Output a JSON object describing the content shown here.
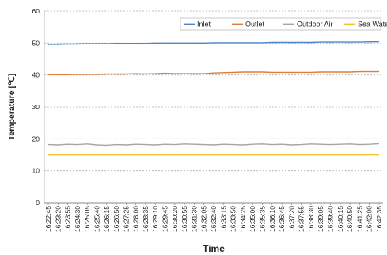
{
  "chart_data": {
    "type": "line",
    "xlabel": "Time",
    "ylabel": "Temperature [℃]",
    "ylim": [
      0,
      60
    ],
    "yticks": [
      0,
      10,
      20,
      30,
      40,
      50,
      60
    ],
    "grid": "horizontal dashed",
    "legend_position": "top-right",
    "categories": [
      "16:22:45",
      "16:23:20",
      "16:23:55",
      "16:24:30",
      "16:25:05",
      "16:25:40",
      "16:26:15",
      "16:26:50",
      "16:27:25",
      "16:28:00",
      "16:28:35",
      "16:29:10",
      "16:29:45",
      "16:30:20",
      "16:30:55",
      "16:31:30",
      "16:32:05",
      "16:32:40",
      "16:33:15",
      "16:33:50",
      "16:34:25",
      "16:35:00",
      "16:35:35",
      "16:36:10",
      "16:36:45",
      "16:37:20",
      "16:37:55",
      "16:38:30",
      "16:39:05",
      "16:39:40",
      "16:40:15",
      "16:40:50",
      "16:41:25",
      "16:42:00",
      "16:42:35"
    ],
    "series": [
      {
        "name": "Inlet",
        "color": "#4a86c8",
        "values": [
          49.6,
          49.6,
          49.7,
          49.7,
          49.8,
          49.8,
          49.8,
          49.9,
          49.9,
          49.9,
          49.9,
          50.0,
          50.0,
          50.0,
          50.0,
          50.0,
          50.0,
          50.1,
          50.1,
          50.1,
          50.1,
          50.1,
          50.1,
          50.2,
          50.2,
          50.2,
          50.2,
          50.2,
          50.3,
          50.3,
          50.3,
          50.3,
          50.3,
          50.4,
          50.4
        ]
      },
      {
        "name": "Outlet",
        "color": "#e07b39",
        "values": [
          40.1,
          40.1,
          40.1,
          40.2,
          40.2,
          40.2,
          40.3,
          40.3,
          40.3,
          40.4,
          40.3,
          40.4,
          40.5,
          40.4,
          40.4,
          40.4,
          40.4,
          40.6,
          40.7,
          40.8,
          40.9,
          40.9,
          40.9,
          40.8,
          40.8,
          40.8,
          40.8,
          40.8,
          40.9,
          40.9,
          40.9,
          40.9,
          41.0,
          41.0,
          41.0
        ]
      },
      {
        "name": "Outdoor Air",
        "color": "#a5a5a5",
        "values": [
          18.2,
          18.1,
          18.3,
          18.2,
          18.4,
          18.1,
          18.0,
          18.2,
          18.1,
          18.3,
          18.2,
          18.1,
          18.3,
          18.2,
          18.4,
          18.3,
          18.2,
          18.1,
          18.3,
          18.2,
          18.1,
          18.3,
          18.4,
          18.2,
          18.3,
          18.1,
          18.2,
          18.4,
          18.3,
          18.2,
          18.3,
          18.4,
          18.2,
          18.3,
          18.5
        ]
      },
      {
        "name": "Sea Water",
        "color": "#f2c12e",
        "values": [
          15.0,
          15.0,
          15.0,
          15.0,
          15.0,
          15.0,
          15.0,
          15.0,
          15.0,
          15.0,
          15.0,
          15.0,
          15.0,
          15.0,
          15.0,
          15.0,
          15.0,
          15.0,
          15.0,
          15.0,
          15.0,
          15.0,
          15.0,
          15.0,
          15.0,
          15.0,
          15.0,
          15.0,
          15.0,
          15.0,
          15.0,
          15.0,
          15.0,
          15.0,
          15.0
        ]
      }
    ]
  }
}
